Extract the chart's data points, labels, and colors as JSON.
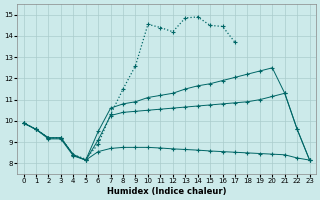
{
  "xlabel": "Humidex (Indice chaleur)",
  "bg_color": "#cceaea",
  "grid_color": "#aacccc",
  "line_color": "#006666",
  "xlim": [
    -0.5,
    23.5
  ],
  "ylim": [
    7.5,
    15.5
  ],
  "xticks": [
    0,
    1,
    2,
    3,
    4,
    5,
    6,
    7,
    8,
    9,
    10,
    11,
    12,
    13,
    14,
    15,
    16,
    17,
    18,
    19,
    20,
    21,
    22,
    23
  ],
  "yticks": [
    8,
    9,
    10,
    11,
    12,
    13,
    14,
    15
  ],
  "lines": [
    {
      "x": [
        0,
        1,
        2,
        3,
        4,
        5,
        6,
        7,
        8,
        9,
        10,
        11,
        12,
        13,
        14,
        15,
        16,
        17
      ],
      "y": [
        9.9,
        9.6,
        9.2,
        9.2,
        8.4,
        8.2,
        8.9,
        10.3,
        11.5,
        12.6,
        14.55,
        14.4,
        14.2,
        14.85,
        14.9,
        14.5,
        14.45,
        13.7
      ],
      "linestyle": ":",
      "linewidth": 0.9,
      "marker": "+"
    },
    {
      "x": [
        0,
        1,
        2,
        3,
        4,
        5,
        6,
        7,
        8,
        9,
        10,
        11,
        12,
        13,
        14,
        15,
        16,
        17,
        18,
        19,
        20,
        21,
        22,
        23
      ],
      "y": [
        9.9,
        9.6,
        9.2,
        9.2,
        8.4,
        8.15,
        9.1,
        10.25,
        10.4,
        10.45,
        10.5,
        10.55,
        10.6,
        10.65,
        10.7,
        10.75,
        10.8,
        10.85,
        10.9,
        11.0,
        11.15,
        11.3,
        9.6,
        8.15
      ],
      "linestyle": "-",
      "linewidth": 0.7,
      "marker": "+"
    },
    {
      "x": [
        0,
        1,
        2,
        3,
        4,
        5,
        6,
        7,
        8,
        9,
        10,
        11,
        12,
        13,
        14,
        15,
        16,
        17,
        18,
        19,
        20,
        21,
        22,
        23
      ],
      "y": [
        9.9,
        9.6,
        9.2,
        9.2,
        8.4,
        8.15,
        9.5,
        10.6,
        10.8,
        10.9,
        11.1,
        11.2,
        11.3,
        11.5,
        11.65,
        11.75,
        11.9,
        12.05,
        12.2,
        12.35,
        12.5,
        11.3,
        9.6,
        8.15
      ],
      "linestyle": "-",
      "linewidth": 0.7,
      "marker": "+"
    },
    {
      "x": [
        0,
        1,
        2,
        3,
        4,
        5,
        6,
        7,
        8,
        9,
        10,
        11,
        12,
        13,
        14,
        15,
        16,
        17,
        18,
        19,
        20,
        21,
        22,
        23
      ],
      "y": [
        9.9,
        9.6,
        9.15,
        9.15,
        8.35,
        8.15,
        8.55,
        8.7,
        8.75,
        8.75,
        8.75,
        8.72,
        8.68,
        8.65,
        8.62,
        8.58,
        8.55,
        8.52,
        8.49,
        8.46,
        8.43,
        8.4,
        8.25,
        8.15
      ],
      "linestyle": "-",
      "linewidth": 0.7,
      "marker": "+"
    }
  ]
}
